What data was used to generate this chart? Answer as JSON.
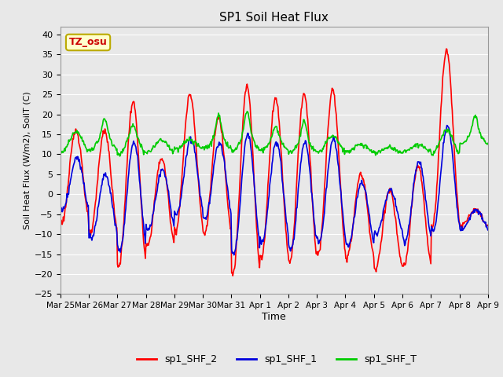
{
  "title": "SP1 Soil Heat Flux",
  "xlabel": "Time",
  "ylabel": "Soil Heat Flux (W/m2), SoilT (C)",
  "ylim": [
    -25,
    42
  ],
  "yticks": [
    -25,
    -20,
    -15,
    -10,
    -5,
    0,
    5,
    10,
    15,
    20,
    25,
    30,
    35,
    40
  ],
  "xtick_labels": [
    "Mar 25",
    "Mar 26",
    "Mar 27",
    "Mar 28",
    "Mar 29",
    "Mar 30",
    "Mar 31",
    "Apr 1",
    "Apr 2",
    "Apr 3",
    "Apr 4",
    "Apr 5",
    "Apr 6",
    "Apr 7",
    "Apr 8",
    "Apr 9"
  ],
  "line_colors": {
    "sp1_SHF_2": "#ff0000",
    "sp1_SHF_1": "#0000dd",
    "sp1_SHF_T": "#00cc00"
  },
  "line_widths": {
    "sp1_SHF_2": 1.2,
    "sp1_SHF_1": 1.2,
    "sp1_SHF_T": 1.2
  },
  "annotation_text": "TZ_osu",
  "annotation_color": "#cc0000",
  "annotation_bg": "#ffffcc",
  "annotation_border": "#bbaa00",
  "plot_bg_color": "#e8e8e8",
  "fig_bg_color": "#e8e8e8",
  "grid_color": "#ffffff",
  "legend_labels": [
    "sp1_SHF_2",
    "sp1_SHF_1",
    "sp1_SHF_T"
  ]
}
